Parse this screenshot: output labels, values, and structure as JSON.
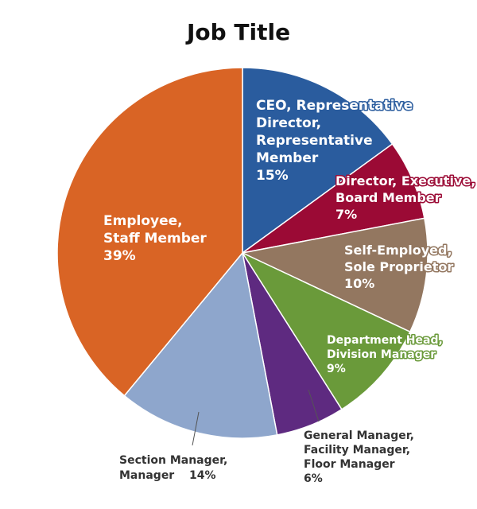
{
  "chart_data": {
    "type": "pie",
    "title": "Job Title",
    "categories": [
      "CEO, Representative\nDirector,\nRepresentative\nMember",
      "Director, Executive,\nBoard Member",
      "Self-Employed,\nSole Proprietor",
      "Department Head,\nDivision Manager",
      "General Manager,\nFacility Manager,\nFloor Manager",
      "Section Manager,\nManager",
      "Employee,\nStaff Member"
    ],
    "values": [
      15,
      7,
      10,
      9,
      6,
      14,
      39
    ],
    "value_labels": [
      "15%",
      "7%",
      "10%",
      "9%",
      "6%",
      "14%",
      "39%"
    ],
    "colors": [
      "#2a5c9e",
      "#9b0a35",
      "#937760",
      "#6a9a3a",
      "#5e2a80",
      "#8ea6cc",
      "#d96425"
    ]
  }
}
